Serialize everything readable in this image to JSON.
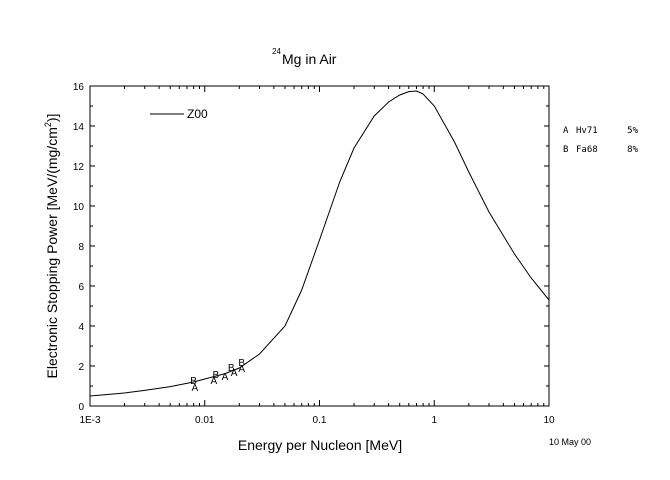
{
  "chart_data": {
    "type": "line",
    "title": {
      "superscript": "24",
      "text": "Mg in Air"
    },
    "xlabel": "Energy per Nucleon [MeV]",
    "ylabel": "Electronic Stopping Power [MeV/(mg/cm 2)]",
    "ylabel_parts": {
      "main": "Electronic Stopping Power [MeV/(mg/cm",
      "sup": "2",
      "tail": ")]"
    },
    "x_scale": "log",
    "xlim": [
      0.001,
      10
    ],
    "ylim": [
      0,
      16
    ],
    "x_ticks": [
      {
        "value": 0.001,
        "label": "1E-3"
      },
      {
        "value": 0.01,
        "label": "0.01"
      },
      {
        "value": 0.1,
        "label": "0.1"
      },
      {
        "value": 1,
        "label": "1"
      },
      {
        "value": 10,
        "label": "10"
      }
    ],
    "y_ticks": [
      {
        "value": 0,
        "label": "0"
      },
      {
        "value": 2,
        "label": "2"
      },
      {
        "value": 4,
        "label": "4"
      },
      {
        "value": 6,
        "label": "6"
      },
      {
        "value": 8,
        "label": "8"
      },
      {
        "value": 10,
        "label": "10"
      },
      {
        "value": 12,
        "label": "12"
      },
      {
        "value": 14,
        "label": "14"
      },
      {
        "value": 16,
        "label": "16"
      }
    ],
    "grid": false,
    "legend_position": "top-left",
    "series": [
      {
        "name": "Z00",
        "x": [
          0.001,
          0.002,
          0.003,
          0.005,
          0.008,
          0.01,
          0.015,
          0.02,
          0.03,
          0.05,
          0.07,
          0.1,
          0.15,
          0.2,
          0.3,
          0.4,
          0.5,
          0.6,
          0.7,
          0.8,
          1,
          1.5,
          2,
          3,
          5,
          7,
          10
        ],
        "y": [
          0.5,
          0.65,
          0.78,
          0.97,
          1.2,
          1.35,
          1.62,
          1.9,
          2.6,
          4.0,
          5.8,
          8.3,
          11.2,
          12.9,
          14.5,
          15.2,
          15.55,
          15.72,
          15.75,
          15.6,
          15.0,
          13.2,
          11.7,
          9.7,
          7.6,
          6.4,
          5.3
        ]
      }
    ],
    "experimental": [
      {
        "letter": "A",
        "code": "Hv71",
        "error": "5%",
        "points": [
          {
            "x": 0.0082,
            "y": 0.95
          },
          {
            "x": 0.012,
            "y": 1.3
          },
          {
            "x": 0.015,
            "y": 1.5
          },
          {
            "x": 0.018,
            "y": 1.7
          },
          {
            "x": 0.021,
            "y": 1.9
          }
        ]
      },
      {
        "letter": "B",
        "code": "Fa68",
        "error": "8%",
        "points": [
          {
            "x": 0.008,
            "y": 1.3
          },
          {
            "x": 0.0125,
            "y": 1.6
          },
          {
            "x": 0.017,
            "y": 1.95
          },
          {
            "x": 0.021,
            "y": 2.2
          }
        ]
      }
    ],
    "date_note": "10 May 00"
  }
}
